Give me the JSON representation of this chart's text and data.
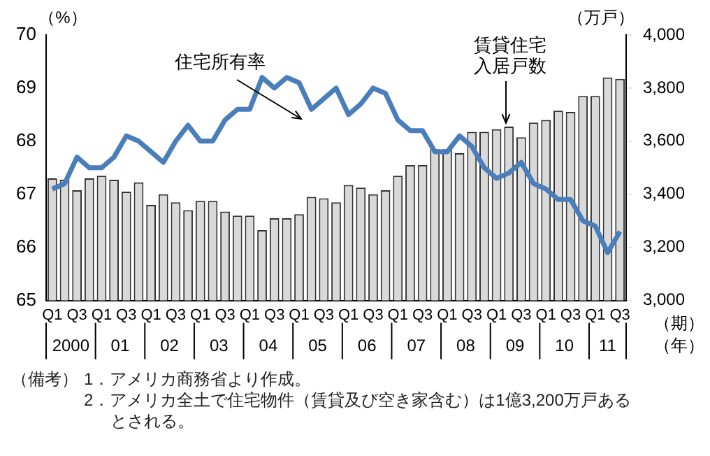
{
  "chart_data": {
    "type": "bar",
    "ylabel": "（%）",
    "y2label": "（万戸）",
    "xlabel": "（期）",
    "categories": [
      "Q1",
      null,
      "Q3",
      null,
      "Q1",
      null,
      "Q3",
      null,
      "Q1",
      null,
      "Q3",
      null,
      "Q1",
      null,
      "Q3",
      null,
      "Q1",
      null,
      "Q3",
      null,
      "Q1",
      null,
      "Q3",
      null,
      "Q1",
      null,
      "Q3",
      null,
      "Q1",
      null,
      "Q3",
      null,
      "Q1",
      null,
      "Q3",
      null,
      "Q1",
      null,
      "Q3",
      null,
      "Q1",
      null,
      "Q3",
      null,
      "Q1",
      null,
      "Q3"
    ],
    "series": [
      {
        "name": "住宅所有率",
        "type": "line",
        "color": "#4a7ebb",
        "values": [
          67.1,
          67.2,
          67.7,
          67.5,
          67.5,
          67.7,
          68.1,
          68.0,
          67.8,
          67.6,
          68.0,
          68.3,
          68.0,
          68.0,
          68.4,
          68.6,
          68.6,
          69.2,
          69.0,
          69.2,
          69.1,
          68.6,
          68.8,
          69.0,
          68.5,
          68.7,
          69.0,
          68.9,
          68.4,
          68.2,
          68.2,
          67.8,
          67.8,
          68.1,
          67.9,
          67.5,
          67.3,
          67.4,
          67.6,
          67.2,
          67.1,
          66.9,
          66.9,
          66.5,
          66.4,
          65.9,
          66.3
        ]
      },
      {
        "name": "賃貸住宅入居戸数",
        "axis": "y2",
        "color": "#d9d9d9",
        "values": [
          3460,
          3455,
          3415,
          3460,
          3470,
          3455,
          3410,
          3445,
          3360,
          3400,
          3370,
          3340,
          3375,
          3375,
          3335,
          3320,
          3320,
          3265,
          3310,
          3310,
          3325,
          3390,
          3385,
          3370,
          3435,
          3425,
          3400,
          3415,
          3470,
          3510,
          3510,
          3570,
          3570,
          3555,
          3635,
          3635,
          3645,
          3655,
          3615,
          3670,
          3680,
          3715,
          3710,
          3770,
          3770,
          3840,
          3835
        ]
      }
    ],
    "ylim": [
      65,
      70
    ],
    "yticks": [
      65,
      66,
      67,
      68,
      69,
      70
    ],
    "y2lim": [
      3000,
      4000
    ],
    "y2ticks": [
      {
        "value": 3000,
        "label": "3,000"
      },
      {
        "value": 3200,
        "label": "3,200"
      },
      {
        "value": 3400,
        "label": "3,400"
      },
      {
        "value": 3600,
        "label": "3,600"
      },
      {
        "value": 3800,
        "label": "3,800"
      },
      {
        "value": 4000,
        "label": "4,000"
      }
    ],
    "grid": false,
    "legend": false,
    "marker": "none",
    "line_style": "solid",
    "annotations": [
      "2000",
      "01",
      "02",
      "03",
      "04",
      "05",
      "06",
      "07",
      "08",
      "09",
      "10",
      "11",
      "（年）",
      "（備考）",
      "1．アメリカ商務省より作成。",
      "2．アメリカ全土で住宅物件（賃貸及び空き家含む）は1億3,200万戸あるとされる。"
    ]
  }
}
